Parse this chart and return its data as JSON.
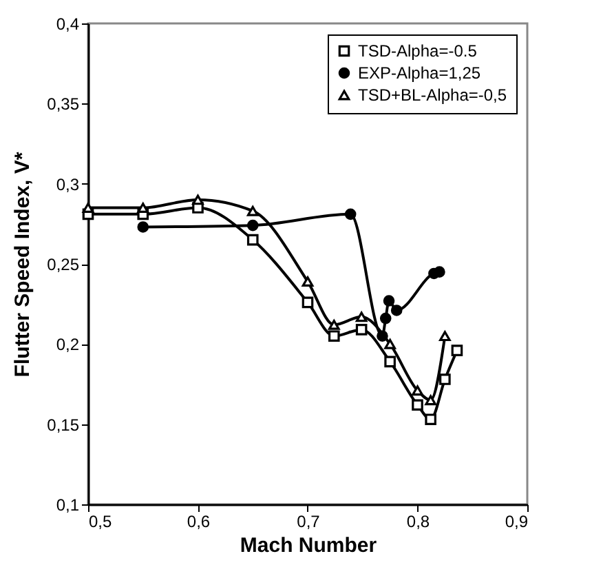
{
  "chart_data": {
    "type": "line",
    "xlabel": "Mach Number",
    "ylabel": "Flutter Speed Index, V*",
    "xlim": [
      0.5,
      0.9
    ],
    "ylim": [
      0.1,
      0.4
    ],
    "xticks": [
      {
        "value": 0.5,
        "label": "0,5"
      },
      {
        "value": 0.6,
        "label": "0,6"
      },
      {
        "value": 0.7,
        "label": "0,7"
      },
      {
        "value": 0.8,
        "label": "0,8"
      },
      {
        "value": 0.9,
        "label": "0,9"
      }
    ],
    "yticks": [
      {
        "value": 0.1,
        "label": "0,1"
      },
      {
        "value": 0.15,
        "label": "0,15"
      },
      {
        "value": 0.2,
        "label": "0,2"
      },
      {
        "value": 0.25,
        "label": "0,25"
      },
      {
        "value": 0.3,
        "label": "0,3"
      },
      {
        "value": 0.35,
        "label": "0,35"
      },
      {
        "value": 0.4,
        "label": "0,4"
      }
    ],
    "grid": false,
    "legend": "top right",
    "series": [
      {
        "name": "TSD-Alpha=-0.5",
        "color": "#000000",
        "marker": "square",
        "x": [
          0.5,
          0.55,
          0.6,
          0.65,
          0.7,
          0.724,
          0.749,
          0.775,
          0.8,
          0.812,
          0.825,
          0.836
        ],
        "values": [
          0.281,
          0.281,
          0.285,
          0.265,
          0.226,
          0.205,
          0.209,
          0.189,
          0.162,
          0.153,
          0.178,
          0.196
        ]
      },
      {
        "name": "EXP-Alpha=1,25",
        "color": "#000000",
        "marker": "circle",
        "x": [
          0.55,
          0.65,
          0.739,
          0.768,
          0.771,
          0.774,
          0.781,
          0.815,
          0.82
        ],
        "values": [
          0.273,
          0.274,
          0.281,
          0.205,
          0.216,
          0.227,
          0.221,
          0.244,
          0.245
        ]
      },
      {
        "name": "TSD+BL-Alpha=-0,5",
        "color": "#000000",
        "marker": "triangle",
        "x": [
          0.5,
          0.55,
          0.6,
          0.65,
          0.7,
          0.724,
          0.749,
          0.775,
          0.8,
          0.812,
          0.825
        ],
        "values": [
          0.285,
          0.285,
          0.29,
          0.283,
          0.239,
          0.212,
          0.217,
          0.2,
          0.171,
          0.165,
          0.205
        ]
      }
    ]
  }
}
